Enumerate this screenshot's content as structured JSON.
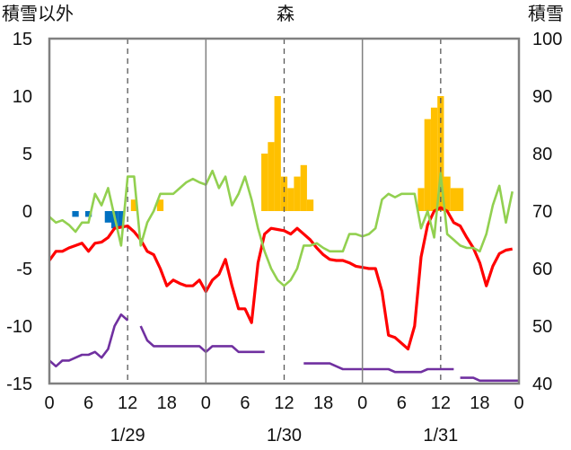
{
  "chart_data": {
    "type": "line",
    "title": "森",
    "left_axis_label": "積雪以外",
    "right_axis_label": "積雪",
    "left_ylim": [
      -15,
      15
    ],
    "left_ticks": [
      15,
      10,
      5,
      0,
      -5,
      -10,
      -15
    ],
    "right_ylim": [
      40,
      100
    ],
    "right_ticks": [
      100,
      90,
      80,
      70,
      60,
      50,
      40
    ],
    "x_range_hours": [
      0,
      72
    ],
    "x_tick_labels": [
      "0",
      "6",
      "12",
      "18",
      "0",
      "6",
      "12",
      "18",
      "0",
      "6",
      "12",
      "18",
      "0"
    ],
    "date_labels": [
      {
        "hour": 12,
        "text": "1/29"
      },
      {
        "hour": 36,
        "text": "1/30"
      },
      {
        "hour": 60,
        "text": "1/31"
      }
    ],
    "vertical_dashed_at_hours": [
      12,
      36,
      60
    ],
    "day_separators_at_hours": [
      24,
      48
    ],
    "grid": false,
    "colors": {
      "snow_bar": "#FFC000",
      "negative_bar": "#0070C0",
      "red_line": "#FF0000",
      "green_line": "#92D050",
      "purple_line": "#7030A0",
      "frame": "#808080",
      "dashed": "#595959"
    },
    "bars": [
      {
        "x": 4,
        "y": -0.5
      },
      {
        "x": 6,
        "y": -0.5
      },
      {
        "x": 9,
        "y": -1
      },
      {
        "x": 10,
        "y": -1.5
      },
      {
        "x": 11,
        "y": -1.5
      },
      {
        "x": 13,
        "y": 1
      },
      {
        "x": 17,
        "y": 1
      },
      {
        "x": 33,
        "y": 5
      },
      {
        "x": 34,
        "y": 6
      },
      {
        "x": 35,
        "y": 10
      },
      {
        "x": 36,
        "y": 3
      },
      {
        "x": 37,
        "y": 2
      },
      {
        "x": 38,
        "y": 3
      },
      {
        "x": 39,
        "y": 4
      },
      {
        "x": 40,
        "y": 1
      },
      {
        "x": 57,
        "y": 2
      },
      {
        "x": 58,
        "y": 8
      },
      {
        "x": 59,
        "y": 9
      },
      {
        "x": 60,
        "y": 10
      },
      {
        "x": 61,
        "y": 3
      },
      {
        "x": 62,
        "y": 2
      },
      {
        "x": 63,
        "y": 2
      }
    ],
    "series": [
      {
        "color": "#FF0000",
        "axis": "left",
        "x": [
          0,
          1,
          2,
          3,
          4,
          5,
          6,
          7,
          8,
          9,
          10,
          11,
          12,
          13,
          14,
          15,
          16,
          17,
          18,
          19,
          20,
          21,
          22,
          23,
          24,
          25,
          26,
          27,
          28,
          29,
          30,
          31,
          32,
          33,
          34,
          35,
          36,
          37,
          38,
          39,
          40,
          41,
          42,
          43,
          44,
          45,
          46,
          47,
          48,
          49,
          50,
          51,
          52,
          53,
          54,
          55,
          56,
          57,
          58,
          59,
          60,
          61,
          62,
          63,
          64,
          65,
          66,
          67,
          68,
          69,
          70,
          71
        ],
        "values": [
          -4.3,
          -3.5,
          -3.5,
          -3.2,
          -3,
          -2.8,
          -3.5,
          -2.8,
          -2.7,
          -2.3,
          -1.5,
          -1.4,
          -1.3,
          -1.8,
          -2.5,
          -3.5,
          -3.8,
          -5,
          -6.5,
          -6,
          -6.3,
          -6.5,
          -6.5,
          -6,
          -7,
          -6,
          -5.5,
          -4.2,
          -6.5,
          -8.5,
          -8.5,
          -9.7,
          -4.5,
          -2,
          -1.5,
          -1.6,
          -1.7,
          -2,
          -1.5,
          -2,
          -2.5,
          -3.2,
          -3.8,
          -4.2,
          -4.3,
          -4.3,
          -4.5,
          -4.8,
          -4.9,
          -5,
          -5,
          -7,
          -10.8,
          -11,
          -11.5,
          -12,
          -10,
          -4,
          -1.2,
          0,
          0.3,
          0,
          -1,
          -1.3,
          -2.3,
          -3.2,
          -4.5,
          -6.5,
          -4.8,
          -3.7,
          -3.4,
          -3.3
        ]
      },
      {
        "color": "#92D050",
        "axis": "left",
        "x": [
          0,
          1,
          2,
          3,
          4,
          5,
          6,
          7,
          8,
          9,
          10,
          11,
          12,
          13,
          14,
          15,
          16,
          17,
          18,
          19,
          20,
          21,
          22,
          23,
          24,
          25,
          26,
          27,
          28,
          29,
          30,
          31,
          32,
          33,
          34,
          35,
          36,
          37,
          38,
          39,
          40,
          41,
          42,
          43,
          44,
          45,
          46,
          47,
          48,
          49,
          50,
          51,
          52,
          53,
          54,
          55,
          56,
          57,
          58,
          59,
          60,
          61,
          62,
          63,
          64,
          65,
          66,
          67,
          68,
          69,
          70,
          71
        ],
        "values": [
          -0.5,
          -1,
          -0.8,
          -1.2,
          -1.8,
          -1,
          -1,
          1.5,
          0.5,
          2,
          -0.5,
          -3,
          3,
          3,
          -3,
          -1,
          0,
          1.5,
          1.5,
          1.5,
          2,
          2.5,
          2.8,
          2.5,
          2.3,
          3.5,
          2,
          3,
          0.5,
          1.5,
          3,
          1,
          -1.5,
          -3.5,
          -5,
          -6,
          -6.5,
          -6,
          -5,
          -3,
          -3,
          -2.8,
          -3.2,
          -3.5,
          -3.5,
          -3.5,
          -2,
          -2,
          -2.2,
          -2,
          -1.5,
          1,
          1.5,
          1.2,
          1.5,
          1.5,
          1.5,
          -1.5,
          0,
          -2.3,
          3.3,
          -2,
          -2.5,
          -3,
          -3.2,
          -3.2,
          -3.5,
          -2,
          0.5,
          2.2,
          -1,
          1.7
        ]
      },
      {
        "color": "#7030A0",
        "axis": "right",
        "segments": [
          {
            "x": [
              0,
              1,
              2,
              3,
              4,
              5,
              6,
              7,
              8,
              9,
              10,
              11,
              12
            ],
            "values": [
              44,
              43,
              44,
              44,
              44.5,
              45,
              45,
              45.5,
              44.5,
              46,
              50,
              52,
              51
            ]
          },
          {
            "x": [
              14,
              15,
              16,
              17,
              18,
              19,
              20,
              21,
              22,
              23,
              24,
              25,
              26,
              27,
              28,
              29,
              30,
              31,
              32,
              33
            ],
            "values": [
              50,
              47.5,
              46.5,
              46.5,
              46.5,
              46.5,
              46.5,
              46.5,
              46.5,
              46.5,
              45.5,
              46.5,
              46.5,
              46.5,
              46.5,
              45.5,
              45.5,
              45.5,
              45.5,
              45.5
            ]
          },
          {
            "x": [
              39,
              40,
              41,
              42,
              43,
              44,
              45,
              46,
              47,
              48,
              49,
              50,
              51,
              52,
              53,
              54,
              55,
              56,
              57,
              58,
              59,
              60,
              61,
              62
            ],
            "values": [
              43.5,
              43.5,
              43.5,
              43.5,
              43.5,
              43,
              42.5,
              42.5,
              42.5,
              42.5,
              42.5,
              42.5,
              42.5,
              42.5,
              42,
              42,
              42,
              42,
              42,
              42.5,
              42.5,
              42.5,
              42.5,
              42.5
            ]
          },
          {
            "x": [
              63,
              64,
              65,
              66,
              67,
              68,
              69,
              70,
              71,
              72
            ],
            "values": [
              41,
              41,
              41,
              40.5,
              40.5,
              40.5,
              40.5,
              40.5,
              40.5,
              40.5
            ]
          }
        ]
      }
    ]
  }
}
